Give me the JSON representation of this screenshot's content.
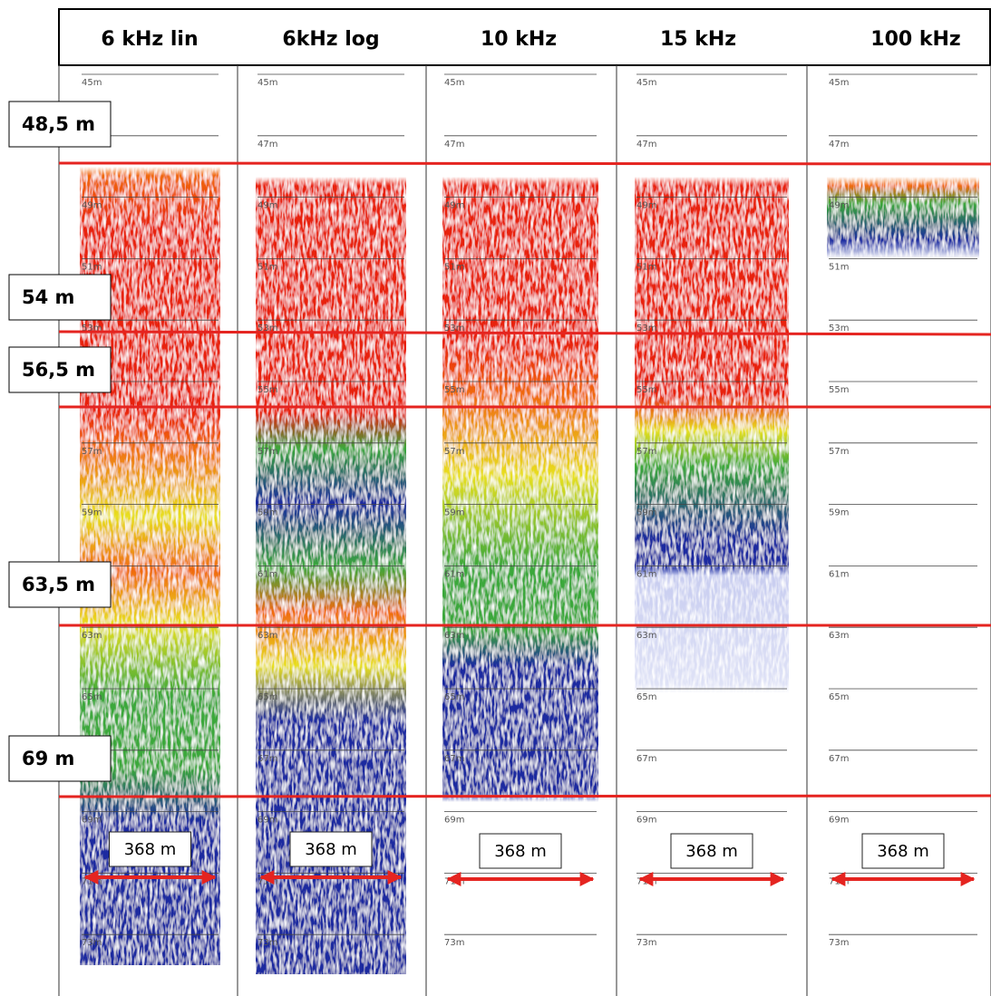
{
  "columns": [
    {
      "title": "6 kHz lin",
      "span": "368 m"
    },
    {
      "title": "6kHz log",
      "span": "368 m"
    },
    {
      "title": "10 kHz",
      "span": "368 m"
    },
    {
      "title": "15 kHz",
      "span": "368 m"
    },
    {
      "title": "100 kHz",
      "span": "368 m"
    }
  ],
  "depth_markers": [
    "48,5 m",
    "54 m",
    "56,5 m",
    "63,5 m",
    "69 m"
  ],
  "depth_scale": [
    "45m",
    "47m",
    "49m",
    "51m",
    "53m",
    "55m",
    "57m",
    "59m",
    "61m",
    "63m",
    "65m",
    "67m",
    "69m",
    "71m",
    "73m"
  ]
}
